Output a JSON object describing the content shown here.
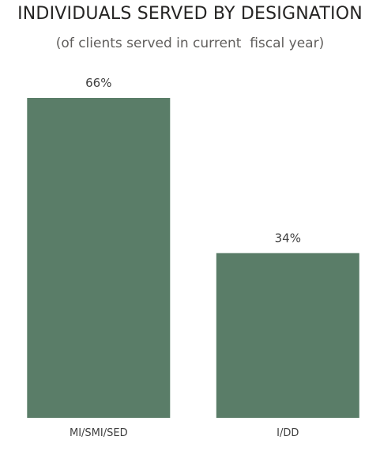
{
  "title": "INDIVIDUALS SERVED BY DESIGNATION",
  "subtitle": "(of clients served in current  fiscal year)",
  "colors": {
    "bar": "#5a7d68",
    "text": "#252423",
    "subtle_text": "#605e5c"
  },
  "chart_data": {
    "type": "bar",
    "title": "INDIVIDUALS SERVED BY DESIGNATION",
    "subtitle": "(of clients served in current  fiscal year)",
    "categories": [
      "MI/SMI/SED",
      "I/DD"
    ],
    "values": [
      66,
      34
    ],
    "data_labels": [
      "66%",
      "34%"
    ],
    "xlabel": "",
    "ylabel": "",
    "ylim": [
      0,
      66
    ],
    "grid": false,
    "legend": "none"
  }
}
